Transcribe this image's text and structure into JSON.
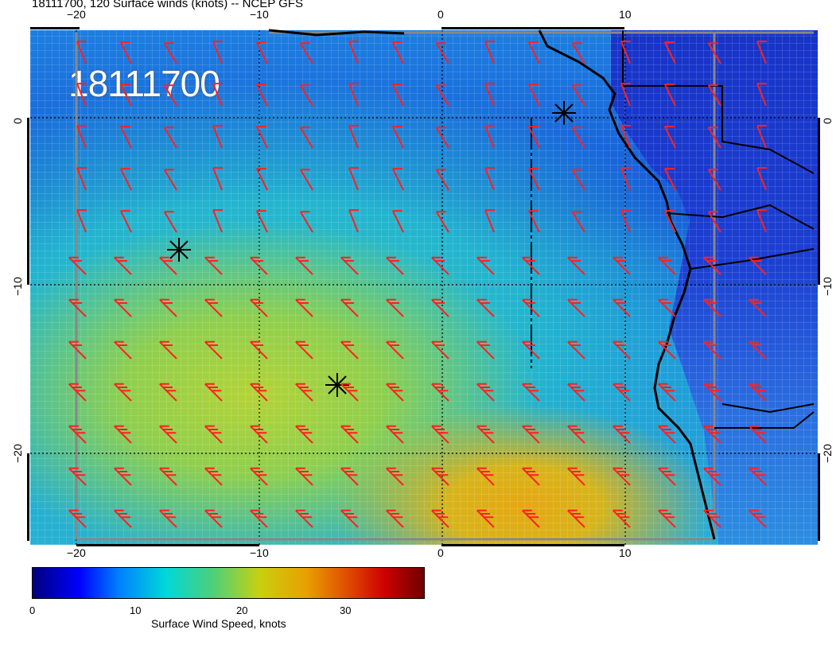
{
  "title": "18111700, 120 Surface winds (knots) -- NCEP GFS",
  "stamp": "18111700",
  "axes": {
    "lon_ticks": [
      "−20",
      "−10",
      "0",
      "10"
    ],
    "lat_ticks": [
      "0",
      "−10",
      "−20"
    ]
  },
  "colorbar": {
    "ticks": [
      "0",
      "10",
      "20",
      "30"
    ],
    "label": "Surface Wind Speed, knots"
  },
  "colors": {
    "barb": "#ff2020",
    "coast": "#000000",
    "grid": "#000000"
  }
}
